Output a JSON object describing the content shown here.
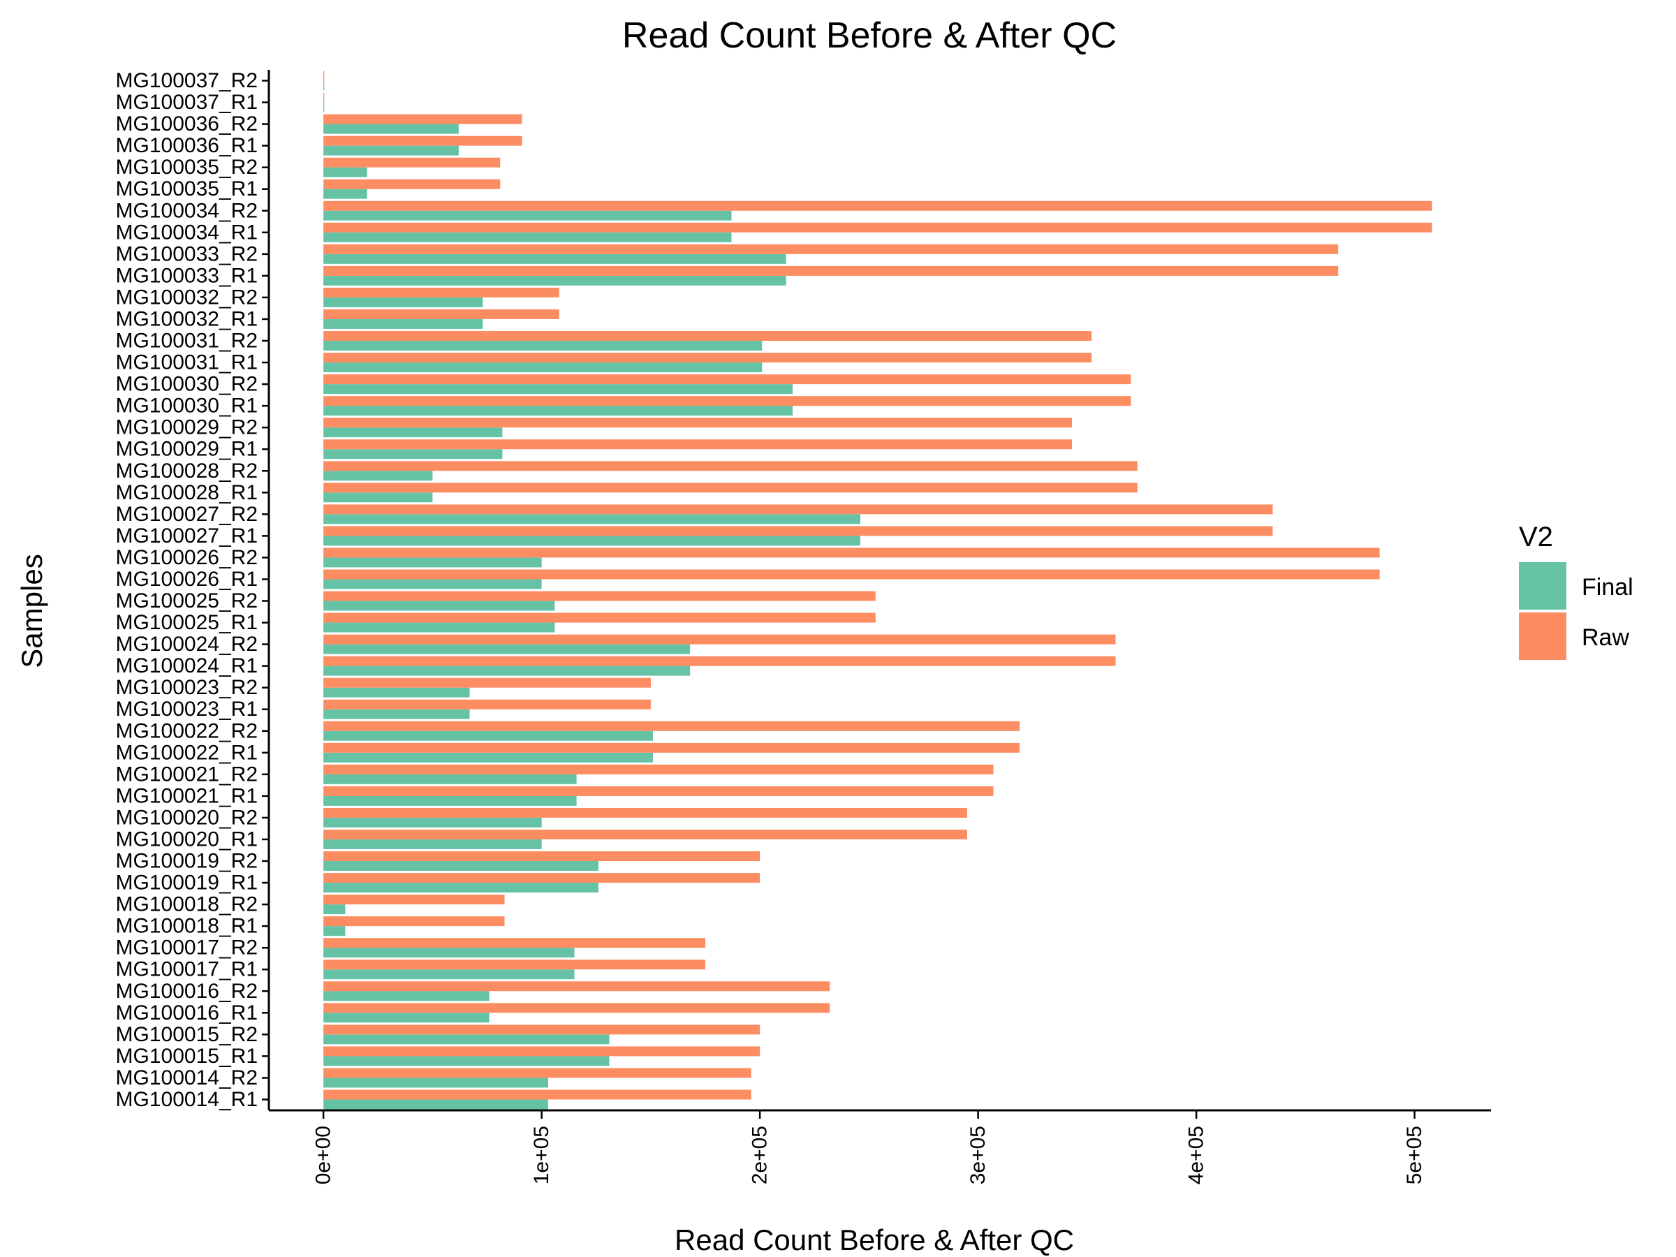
{
  "chart_data": {
    "type": "bar",
    "orientation": "horizontal",
    "title": "Read Count Before & After QC",
    "xlabel": "Read Count Before & After QC",
    "ylabel": "Samples",
    "xlim": [
      -25000,
      535000
    ],
    "x_ticks": [
      0,
      100000,
      200000,
      300000,
      400000,
      500000
    ],
    "x_tick_labels": [
      "0e+00",
      "1e+05",
      "2e+05",
      "3e+05",
      "4e+05",
      "5e+05"
    ],
    "grid": false,
    "legend": {
      "title": "V2",
      "position": "right"
    },
    "categories": [
      "MG100014_R1",
      "MG100014_R2",
      "MG100015_R1",
      "MG100015_R2",
      "MG100016_R1",
      "MG100016_R2",
      "MG100017_R1",
      "MG100017_R2",
      "MG100018_R1",
      "MG100018_R2",
      "MG100019_R1",
      "MG100019_R2",
      "MG100020_R1",
      "MG100020_R2",
      "MG100021_R1",
      "MG100021_R2",
      "MG100022_R1",
      "MG100022_R2",
      "MG100023_R1",
      "MG100023_R2",
      "MG100024_R1",
      "MG100024_R2",
      "MG100025_R1",
      "MG100025_R2",
      "MG100026_R1",
      "MG100026_R2",
      "MG100027_R1",
      "MG100027_R2",
      "MG100028_R1",
      "MG100028_R2",
      "MG100029_R1",
      "MG100029_R2",
      "MG100030_R1",
      "MG100030_R2",
      "MG100031_R1",
      "MG100031_R2",
      "MG100032_R1",
      "MG100032_R2",
      "MG100033_R1",
      "MG100033_R2",
      "MG100034_R1",
      "MG100034_R2",
      "MG100035_R1",
      "MG100035_R2",
      "MG100036_R1",
      "MG100036_R2",
      "MG100037_R1",
      "MG100037_R2"
    ],
    "series": [
      {
        "name": "Final",
        "color": "#66C2A5",
        "values": [
          103000,
          103000,
          131000,
          131000,
          76000,
          76000,
          115000,
          115000,
          10000,
          10000,
          126000,
          126000,
          100000,
          100000,
          116000,
          116000,
          151000,
          151000,
          67000,
          67000,
          168000,
          168000,
          106000,
          106000,
          100000,
          100000,
          246000,
          246000,
          50000,
          50000,
          82000,
          82000,
          215000,
          215000,
          201000,
          201000,
          73000,
          73000,
          212000,
          212000,
          187000,
          187000,
          20000,
          20000,
          62000,
          62000,
          0,
          0
        ]
      },
      {
        "name": "Raw",
        "color": "#FC8D62",
        "values": [
          196000,
          196000,
          200000,
          200000,
          232000,
          232000,
          175000,
          175000,
          83000,
          83000,
          200000,
          200000,
          295000,
          295000,
          307000,
          307000,
          319000,
          319000,
          150000,
          150000,
          363000,
          363000,
          253000,
          253000,
          484000,
          484000,
          435000,
          435000,
          373000,
          373000,
          343000,
          343000,
          370000,
          370000,
          352000,
          352000,
          108000,
          108000,
          465000,
          465000,
          508000,
          508000,
          81000,
          81000,
          91000,
          91000,
          300,
          300
        ]
      }
    ]
  }
}
